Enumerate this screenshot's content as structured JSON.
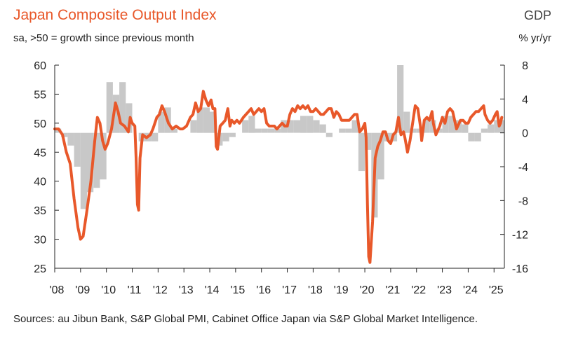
{
  "header": {
    "title": "Japan Composite Output Index",
    "subtitle": "sa, >50 = growth since previous month",
    "right_title": "GDP",
    "right_subtitle": "% yr/yr"
  },
  "footer": {
    "source": "Sources: au Jibun Bank, S&P Global PMI, Cabinet Office Japan via S&P Global Market Intelligence."
  },
  "colors": {
    "line": "#e8582a",
    "bars": "#c8c8c8",
    "title": "#e8582a",
    "axis": "#222222"
  },
  "chart_data": {
    "type": "line+bar",
    "title": "Japan Composite Output Index",
    "left_axis": {
      "label": "sa, >50 = growth since previous month",
      "ylim": [
        25,
        60
      ],
      "ticks": [
        60,
        55,
        50,
        45,
        40,
        35,
        30,
        25
      ]
    },
    "right_axis": {
      "label": "GDP % yr/yr",
      "ylim": [
        -16,
        8
      ],
      "ticks": [
        8,
        4,
        0,
        -4,
        -8,
        -12,
        -16
      ]
    },
    "x_axis": {
      "range": [
        2008.0,
        2025.4
      ],
      "tick_labels": [
        "'08",
        "'09",
        "'10",
        "'11",
        "'12",
        "'13",
        "'14",
        "'15",
        "'16",
        "'17",
        "'18",
        "'19",
        "'20",
        "'21",
        "'22",
        "'23",
        "'24",
        "'25"
      ],
      "tick_years": [
        2008,
        2009,
        2010,
        2011,
        2012,
        2013,
        2014,
        2015,
        2016,
        2017,
        2018,
        2019,
        2020,
        2021,
        2022,
        2023,
        2024,
        2025
      ]
    },
    "series": [
      {
        "name": "Japan Composite Output Index",
        "axis": "left",
        "style": "line",
        "points": [
          [
            2008.0,
            49
          ],
          [
            2008.15,
            49
          ],
          [
            2008.3,
            48
          ],
          [
            2008.45,
            45
          ],
          [
            2008.6,
            43
          ],
          [
            2008.75,
            37
          ],
          [
            2008.9,
            32
          ],
          [
            2009.0,
            30
          ],
          [
            2009.1,
            30.5
          ],
          [
            2009.25,
            35
          ],
          [
            2009.4,
            40
          ],
          [
            2009.55,
            47
          ],
          [
            2009.65,
            51
          ],
          [
            2009.75,
            50
          ],
          [
            2009.85,
            47
          ],
          [
            2009.95,
            45.5
          ],
          [
            2010.05,
            46.5
          ],
          [
            2010.2,
            49
          ],
          [
            2010.35,
            53.5
          ],
          [
            2010.45,
            52
          ],
          [
            2010.55,
            50
          ],
          [
            2010.7,
            49.5
          ],
          [
            2010.85,
            48.5
          ],
          [
            2010.92,
            51
          ],
          [
            2011.0,
            50
          ],
          [
            2011.1,
            49.5
          ],
          [
            2011.15,
            44
          ],
          [
            2011.2,
            36
          ],
          [
            2011.25,
            35
          ],
          [
            2011.3,
            44
          ],
          [
            2011.4,
            48
          ],
          [
            2011.55,
            47.5
          ],
          [
            2011.7,
            48
          ],
          [
            2011.8,
            49
          ],
          [
            2011.95,
            51
          ],
          [
            2012.05,
            51.5
          ],
          [
            2012.15,
            53
          ],
          [
            2012.25,
            52
          ],
          [
            2012.4,
            50
          ],
          [
            2012.55,
            49
          ],
          [
            2012.7,
            49.5
          ],
          [
            2012.85,
            49
          ],
          [
            2012.95,
            49
          ],
          [
            2013.1,
            49.5
          ],
          [
            2013.25,
            51
          ],
          [
            2013.35,
            51.5
          ],
          [
            2013.45,
            53.5
          ],
          [
            2013.55,
            52
          ],
          [
            2013.65,
            52.5
          ],
          [
            2013.75,
            55.5
          ],
          [
            2013.85,
            54
          ],
          [
            2013.95,
            53
          ],
          [
            2014.05,
            54
          ],
          [
            2014.12,
            52.5
          ],
          [
            2014.2,
            52.5
          ],
          [
            2014.25,
            46
          ],
          [
            2014.3,
            45.5
          ],
          [
            2014.4,
            49.5
          ],
          [
            2014.5,
            50
          ],
          [
            2014.6,
            50.5
          ],
          [
            2014.7,
            52.5
          ],
          [
            2014.78,
            49.5
          ],
          [
            2014.85,
            50.5
          ],
          [
            2014.95,
            50
          ],
          [
            2015.05,
            50.5
          ],
          [
            2015.15,
            50
          ],
          [
            2015.3,
            51
          ],
          [
            2015.4,
            51.5
          ],
          [
            2015.5,
            52
          ],
          [
            2015.6,
            52.5
          ],
          [
            2015.7,
            51.5
          ],
          [
            2015.8,
            52
          ],
          [
            2015.9,
            52.5
          ],
          [
            2016.0,
            52
          ],
          [
            2016.1,
            52.5
          ],
          [
            2016.2,
            50
          ],
          [
            2016.3,
            49.5
          ],
          [
            2016.4,
            49.5
          ],
          [
            2016.5,
            49.5
          ],
          [
            2016.6,
            49
          ],
          [
            2016.7,
            49.5
          ],
          [
            2016.8,
            50
          ],
          [
            2016.9,
            49.5
          ],
          [
            2017.0,
            49.5
          ],
          [
            2017.1,
            51.5
          ],
          [
            2017.2,
            52.5
          ],
          [
            2017.3,
            52
          ],
          [
            2017.4,
            53
          ],
          [
            2017.5,
            52.5
          ],
          [
            2017.6,
            53
          ],
          [
            2017.7,
            52.5
          ],
          [
            2017.8,
            53
          ],
          [
            2017.9,
            52
          ],
          [
            2018.0,
            52
          ],
          [
            2018.1,
            52.5
          ],
          [
            2018.2,
            52
          ],
          [
            2018.3,
            51.5
          ],
          [
            2018.4,
            51.5
          ],
          [
            2018.5,
            52
          ],
          [
            2018.6,
            52.5
          ],
          [
            2018.7,
            52.5
          ],
          [
            2018.8,
            51
          ],
          [
            2018.9,
            52
          ],
          [
            2019.0,
            51.5
          ],
          [
            2019.1,
            50.5
          ],
          [
            2019.2,
            50.5
          ],
          [
            2019.3,
            50.5
          ],
          [
            2019.4,
            50.5
          ],
          [
            2019.5,
            51
          ],
          [
            2019.6,
            51.5
          ],
          [
            2019.7,
            51.5
          ],
          [
            2019.8,
            48.5
          ],
          [
            2019.9,
            49
          ],
          [
            2020.0,
            50
          ],
          [
            2020.05,
            47.5
          ],
          [
            2020.1,
            36
          ],
          [
            2020.15,
            27
          ],
          [
            2020.2,
            26
          ],
          [
            2020.3,
            33
          ],
          [
            2020.4,
            44
          ],
          [
            2020.5,
            46
          ],
          [
            2020.6,
            47
          ],
          [
            2020.7,
            48.5
          ],
          [
            2020.8,
            48.5
          ],
          [
            2020.9,
            47
          ],
          [
            2021.0,
            46.5
          ],
          [
            2021.1,
            48
          ],
          [
            2021.2,
            48.5
          ],
          [
            2021.3,
            51
          ],
          [
            2021.4,
            48
          ],
          [
            2021.5,
            48.5
          ],
          [
            2021.55,
            47.5
          ],
          [
            2021.65,
            45
          ],
          [
            2021.75,
            47
          ],
          [
            2021.85,
            50
          ],
          [
            2021.95,
            53
          ],
          [
            2022.05,
            52.5
          ],
          [
            2022.15,
            49.5
          ],
          [
            2022.2,
            47
          ],
          [
            2022.3,
            50.5
          ],
          [
            2022.4,
            51
          ],
          [
            2022.5,
            50.5
          ],
          [
            2022.6,
            52
          ],
          [
            2022.65,
            50
          ],
          [
            2022.75,
            48
          ],
          [
            2022.9,
            49.5
          ],
          [
            2023.0,
            51
          ],
          [
            2023.1,
            50
          ],
          [
            2023.2,
            52
          ],
          [
            2023.3,
            52.5
          ],
          [
            2023.4,
            52
          ],
          [
            2023.5,
            50
          ],
          [
            2023.55,
            49
          ],
          [
            2023.7,
            50.5
          ],
          [
            2023.8,
            50.5
          ],
          [
            2023.9,
            50
          ],
          [
            2024.0,
            50
          ],
          [
            2024.1,
            51
          ],
          [
            2024.2,
            51.5
          ],
          [
            2024.3,
            52
          ],
          [
            2024.4,
            52
          ],
          [
            2024.5,
            52.5
          ],
          [
            2024.6,
            53
          ],
          [
            2024.65,
            51.5
          ],
          [
            2024.75,
            50.5
          ],
          [
            2024.85,
            50
          ],
          [
            2024.95,
            50.5
          ],
          [
            2025.05,
            51.5
          ],
          [
            2025.12,
            52
          ],
          [
            2025.2,
            49.5
          ],
          [
            2025.25,
            50
          ],
          [
            2025.3,
            51
          ]
        ]
      },
      {
        "name": "GDP % yr/yr",
        "axis": "right",
        "style": "bar",
        "points": [
          [
            2008.0,
            0.5
          ],
          [
            2008.25,
            -0.5
          ],
          [
            2008.5,
            -1.5
          ],
          [
            2008.75,
            -4
          ],
          [
            2009.0,
            -9
          ],
          [
            2009.25,
            -7
          ],
          [
            2009.5,
            -6.5
          ],
          [
            2009.75,
            -5.5
          ],
          [
            2010.0,
            6
          ],
          [
            2010.25,
            4.5
          ],
          [
            2010.5,
            6
          ],
          [
            2010.75,
            3.5
          ],
          [
            2011.0,
            0
          ],
          [
            2011.25,
            -1
          ],
          [
            2011.5,
            -1
          ],
          [
            2011.75,
            -1
          ],
          [
            2012.0,
            2.5
          ],
          [
            2012.25,
            3
          ],
          [
            2012.5,
            0.5
          ],
          [
            2012.75,
            0
          ],
          [
            2013.0,
            0
          ],
          [
            2013.25,
            1.5
          ],
          [
            2013.5,
            3
          ],
          [
            2013.75,
            3
          ],
          [
            2014.0,
            2.5
          ],
          [
            2014.25,
            -1.5
          ],
          [
            2014.5,
            -1
          ],
          [
            2014.75,
            -0.5
          ],
          [
            2015.0,
            0
          ],
          [
            2015.25,
            1.5
          ],
          [
            2015.5,
            2
          ],
          [
            2015.75,
            0.5
          ],
          [
            2016.0,
            0.5
          ],
          [
            2016.25,
            0.5
          ],
          [
            2016.5,
            0.5
          ],
          [
            2016.75,
            1.5
          ],
          [
            2017.0,
            1.5
          ],
          [
            2017.25,
            1.5
          ],
          [
            2017.5,
            2
          ],
          [
            2017.75,
            2
          ],
          [
            2018.0,
            1.5
          ],
          [
            2018.25,
            1
          ],
          [
            2018.5,
            -0.5
          ],
          [
            2018.75,
            0
          ],
          [
            2019.0,
            0.5
          ],
          [
            2019.25,
            0.5
          ],
          [
            2019.5,
            1.5
          ],
          [
            2019.75,
            -4.5
          ],
          [
            2020.0,
            -2
          ],
          [
            2020.25,
            -10
          ],
          [
            2020.5,
            -5.5
          ],
          [
            2020.75,
            -1
          ],
          [
            2021.0,
            -1
          ],
          [
            2021.25,
            8
          ],
          [
            2021.5,
            2.5
          ],
          [
            2021.75,
            0.5
          ],
          [
            2022.0,
            0.5
          ],
          [
            2022.25,
            1.5
          ],
          [
            2022.5,
            1.5
          ],
          [
            2022.75,
            0.5
          ],
          [
            2023.0,
            2
          ],
          [
            2023.25,
            2
          ],
          [
            2023.5,
            1.5
          ],
          [
            2023.75,
            1
          ],
          [
            2024.0,
            -1
          ],
          [
            2024.25,
            -1
          ],
          [
            2024.5,
            0.5
          ],
          [
            2024.75,
            1
          ],
          [
            2025.0,
            1.5
          ],
          [
            2025.25,
            1.5
          ]
        ]
      }
    ]
  }
}
